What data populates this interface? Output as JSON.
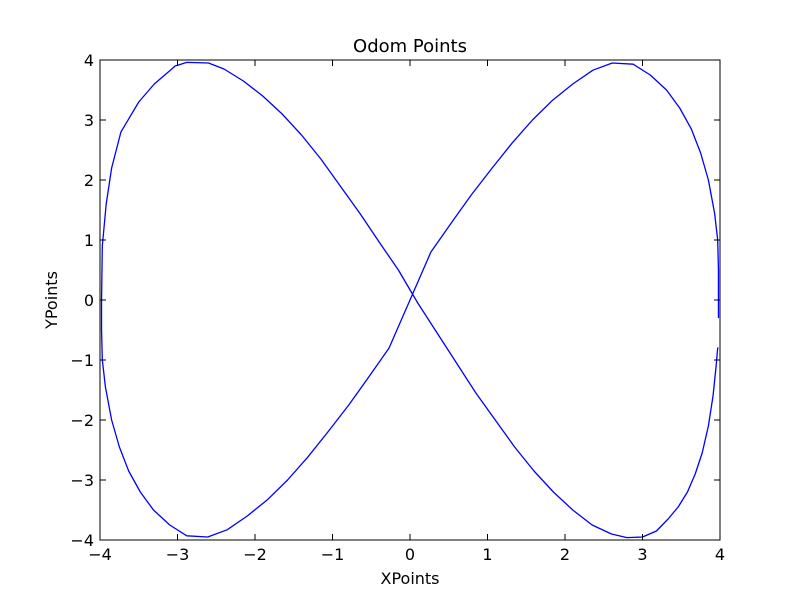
{
  "chart_data": {
    "type": "line",
    "title": "Odom Points",
    "xlabel": "XPoints",
    "ylabel": "YPoints",
    "xlim": [
      -4,
      4
    ],
    "ylim": [
      -4,
      4
    ],
    "xticks": [
      -4,
      -3,
      -2,
      -1,
      0,
      1,
      2,
      3,
      4
    ],
    "yticks": [
      -4,
      -3,
      -2,
      -1,
      0,
      1,
      2,
      3,
      4
    ],
    "xtick_labels": [
      "−4",
      "−3",
      "−2",
      "−1",
      "0",
      "1",
      "2",
      "3",
      "4"
    ],
    "ytick_labels": [
      "−4",
      "−3",
      "−2",
      "−1",
      "0",
      "1",
      "2",
      "3",
      "4"
    ],
    "grid": false,
    "series": [
      {
        "color": "#0000ff",
        "x": [
          3.98,
          3.98,
          3.97,
          3.93,
          3.85,
          3.75,
          3.63,
          3.48,
          3.31,
          3.1,
          2.88,
          2.61,
          2.36,
          2.1,
          1.84,
          1.58,
          1.32,
          1.06,
          0.79,
          0.53,
          0.27,
          0.0,
          -0.27,
          -0.53,
          -0.79,
          -1.06,
          -1.32,
          -1.58,
          -1.84,
          -2.1,
          -2.36,
          -2.61,
          -2.88,
          -3.1,
          -3.31,
          -3.48,
          -3.63,
          -3.75,
          -3.85,
          -3.93,
          -3.97,
          -3.98,
          -3.98,
          -3.97,
          -3.92,
          -3.85,
          -3.73,
          -3.5,
          -3.3,
          -3.1,
          -3.03,
          -2.88,
          -2.6,
          -2.4,
          -2.15,
          -1.9,
          -1.65,
          -1.4,
          -1.15,
          -0.9,
          -0.65,
          -0.4,
          -0.15,
          0.1,
          0.35,
          0.6,
          0.85,
          1.1,
          1.35,
          1.6,
          1.85,
          2.1,
          2.35,
          2.6,
          2.8,
          3.0,
          3.18,
          3.33,
          3.46,
          3.58,
          3.68,
          3.77,
          3.85,
          3.91,
          3.95,
          3.97,
          3.98
        ],
        "y": [
          -0.3,
          0.5,
          1.0,
          1.45,
          2.0,
          2.45,
          2.85,
          3.2,
          3.5,
          3.75,
          3.93,
          3.95,
          3.83,
          3.6,
          3.33,
          3.0,
          2.62,
          2.2,
          1.75,
          1.28,
          0.8,
          0.0,
          -0.8,
          -1.28,
          -1.75,
          -2.2,
          -2.62,
          -3.0,
          -3.33,
          -3.6,
          -3.83,
          -3.95,
          -3.93,
          -3.75,
          -3.5,
          -3.2,
          -2.85,
          -2.45,
          -2.0,
          -1.45,
          -1.0,
          -0.5,
          0.0,
          0.9,
          1.6,
          2.2,
          2.8,
          3.3,
          3.6,
          3.82,
          3.9,
          3.96,
          3.95,
          3.85,
          3.65,
          3.4,
          3.1,
          2.75,
          2.35,
          1.9,
          1.45,
          0.97,
          0.5,
          -0.05,
          -0.55,
          -1.05,
          -1.55,
          -2.0,
          -2.45,
          -2.85,
          -3.2,
          -3.5,
          -3.75,
          -3.9,
          -3.96,
          -3.95,
          -3.85,
          -3.65,
          -3.45,
          -3.2,
          -2.9,
          -2.55,
          -2.1,
          -1.6,
          -1.1,
          -0.8,
          -0.8
        ]
      }
    ]
  }
}
